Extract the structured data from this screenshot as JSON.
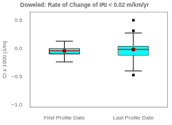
{
  "chart_data": {
    "type": "box",
    "title": "Doweled: Rate of Change of IRI < 0.02 m/km/yr",
    "ylabel": "CI x 1000 (1/m)",
    "categories": [
      "First Profile Date",
      "Last Profile Date"
    ],
    "boxes": [
      {
        "median": -0.045,
        "q1": -0.104,
        "q3": 0.003,
        "whisker_low": -0.24,
        "whisker_high": 0.127,
        "mean": -0.045,
        "outliers": []
      },
      {
        "median": -0.02,
        "q1": -0.126,
        "q3": 0.045,
        "whisker_low": -0.4,
        "whisker_high": 0.273,
        "mean": -0.02,
        "outliers": [
          -0.475,
          0.313,
          0.5
        ]
      }
    ],
    "colors": {
      "box": "#00FFFF",
      "edge": "#000000",
      "median": "#FF0000",
      "mean": "#8B0000",
      "whisker": "#000000"
    },
    "ylim": [
      -1.05,
      0.65
    ],
    "yticks": [
      {
        "value": -1.0,
        "label": "−1.0"
      },
      {
        "value": -0.5,
        "label": "−0.5"
      },
      {
        "value": 0.0,
        "label": "0.0"
      },
      0.5
    ],
    "grid": false,
    "legend": false
  }
}
